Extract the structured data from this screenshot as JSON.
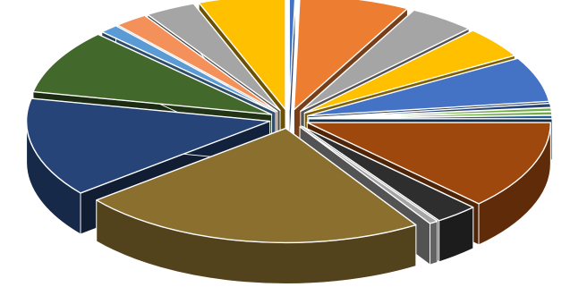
{
  "chart_data": {
    "type": "pie",
    "variant": "3d-exploded",
    "title": "",
    "legend": "none",
    "data_labels": "none",
    "slices": [
      {
        "value": 0.4,
        "color": "#4472C4"
      },
      {
        "value": 7.6,
        "color": "#ED7D31"
      },
      {
        "value": 4.6,
        "color": "#A5A5A5"
      },
      {
        "value": 4.6,
        "color": "#FFC000"
      },
      {
        "value": 6.6,
        "color": "#4472C4"
      },
      {
        "value": 0.6,
        "color": "#264478"
      },
      {
        "value": 0.5,
        "color": "#70AD47"
      },
      {
        "value": 0.5,
        "color": "#70AD47"
      },
      {
        "value": 0.5,
        "color": "#255E91"
      },
      {
        "value": 13.0,
        "color": "#9E480E"
      },
      {
        "value": 3.0,
        "color": "#2E2E2E"
      },
      {
        "value": 0.6,
        "color": "#A5A5A5"
      },
      {
        "value": 24.0,
        "color": "#8B6F2E"
      },
      {
        "value": 14.5,
        "color": "#264478"
      },
      {
        "value": 9.5,
        "color": "#43682B"
      },
      {
        "value": 1.3,
        "color": "#5B9BD5"
      },
      {
        "value": 2.3,
        "color": "#F4915A"
      },
      {
        "value": 3.5,
        "color": "#A5A5A5"
      },
      {
        "value": 6.0,
        "color": "#FFC000"
      }
    ]
  }
}
